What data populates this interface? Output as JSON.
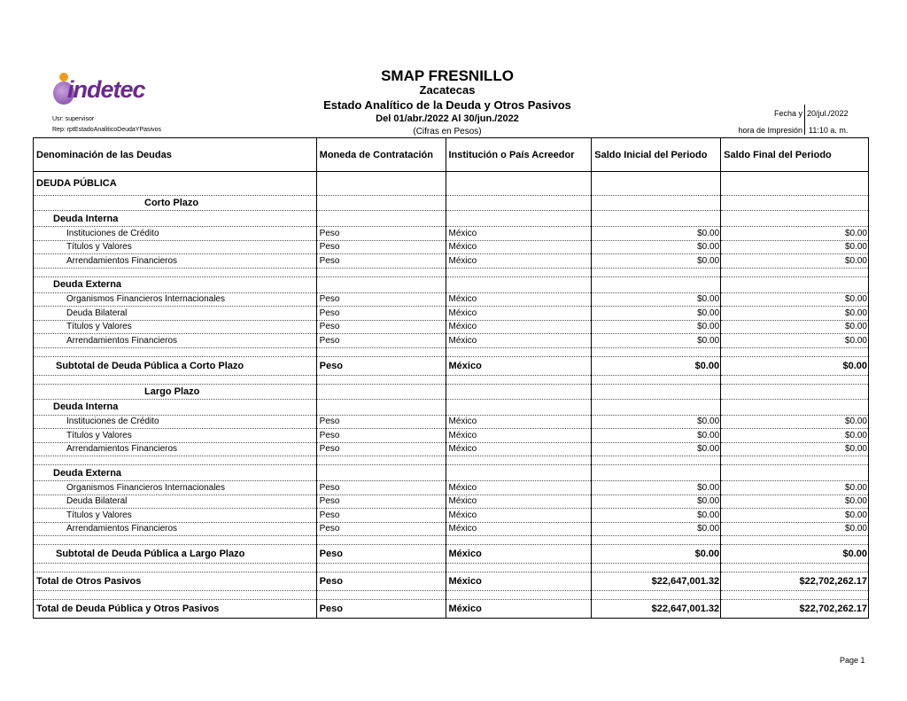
{
  "header": {
    "entity": "SMAP FRESNILLO",
    "state": "Zacatecas",
    "report_title": "Estado Analítico de la Deuda y Otros Pasivos",
    "period": "Del 01/abr./2022 Al 30/jun./2022",
    "units": "(Cifras en Pesos)",
    "user": "Usr: supervisor",
    "report": "Rep: rptEstadoAnaliticoDeudaYPasivos",
    "date_label": "Fecha y",
    "date_value": "20/jul./2022",
    "time_label": "hora de Impresión",
    "time_value": "11:10 a. m.",
    "logo_text": "indetec"
  },
  "columns": [
    "Denominación de las Deudas",
    "Moneda de Contratación",
    "Institución o País Acreedor",
    "Saldo Inicial del Periodo",
    "Saldo Final del Periodo"
  ],
  "rows": [
    {
      "type": "section",
      "cells": [
        "DEUDA PÚBLICA",
        "",
        "",
        "",
        ""
      ]
    },
    {
      "type": "plazo",
      "cells": [
        "Corto Plazo",
        "",
        "",
        "",
        ""
      ]
    },
    {
      "type": "group",
      "cells": [
        "Deuda Interna",
        "",
        "",
        "",
        ""
      ]
    },
    {
      "type": "item",
      "cells": [
        "Instituciones de Crédito",
        "Peso",
        "México",
        "$0.00",
        "$0.00"
      ]
    },
    {
      "type": "item",
      "cells": [
        "Títulos y Valores",
        "Peso",
        "México",
        "$0.00",
        "$0.00"
      ]
    },
    {
      "type": "item",
      "cells": [
        "Arrendamientos Financieros",
        "Peso",
        "México",
        "$0.00",
        "$0.00"
      ]
    },
    {
      "type": "blank",
      "cells": [
        "",
        "",
        "",
        "",
        ""
      ]
    },
    {
      "type": "group",
      "cells": [
        "Deuda Externa",
        "",
        "",
        "",
        ""
      ]
    },
    {
      "type": "item",
      "cells": [
        "Organismos Financieros Internacionales",
        "Peso",
        "México",
        "$0.00",
        "$0.00"
      ]
    },
    {
      "type": "item",
      "cells": [
        "Deuda Bilateral",
        "Peso",
        "México",
        "$0.00",
        "$0.00"
      ]
    },
    {
      "type": "item",
      "cells": [
        "Títulos y Valores",
        "Peso",
        "México",
        "$0.00",
        "$0.00"
      ]
    },
    {
      "type": "item",
      "cells": [
        "Arrendamientos Financieros",
        "Peso",
        "México",
        "$0.00",
        "$0.00"
      ]
    },
    {
      "type": "blank",
      "cells": [
        "",
        "",
        "",
        "",
        ""
      ]
    },
    {
      "type": "subtotal",
      "cells": [
        "Subtotal de Deuda Pública a Corto Plazo",
        "Peso",
        "México",
        "$0.00",
        "$0.00"
      ]
    },
    {
      "type": "blank",
      "cells": [
        "",
        "",
        "",
        "",
        ""
      ]
    },
    {
      "type": "plazo",
      "cells": [
        "Largo Plazo",
        "",
        "",
        "",
        ""
      ]
    },
    {
      "type": "group",
      "cells": [
        "Deuda Interna",
        "",
        "",
        "",
        ""
      ]
    },
    {
      "type": "item",
      "cells": [
        "Instituciones de Crédito",
        "Peso",
        "México",
        "$0.00",
        "$0.00"
      ]
    },
    {
      "type": "item",
      "cells": [
        "Títulos y Valores",
        "Peso",
        "México",
        "$0.00",
        "$0.00"
      ]
    },
    {
      "type": "item",
      "cells": [
        "Arrendamientos Financieros",
        "Peso",
        "México",
        "$0.00",
        "$0.00"
      ]
    },
    {
      "type": "blank",
      "cells": [
        "",
        "",
        "",
        "",
        ""
      ]
    },
    {
      "type": "group",
      "cells": [
        "Deuda Externa",
        "",
        "",
        "",
        ""
      ]
    },
    {
      "type": "item",
      "cells": [
        "Organismos Financieros Internacionales",
        "Peso",
        "México",
        "$0.00",
        "$0.00"
      ]
    },
    {
      "type": "item",
      "cells": [
        "Deuda Bilateral",
        "Peso",
        "México",
        "$0.00",
        "$0.00"
      ]
    },
    {
      "type": "item",
      "cells": [
        "Títulos y Valores",
        "Peso",
        "México",
        "$0.00",
        "$0.00"
      ]
    },
    {
      "type": "item",
      "cells": [
        "Arrendamientos Financieros",
        "Peso",
        "México",
        "$0.00",
        "$0.00"
      ]
    },
    {
      "type": "blank",
      "cells": [
        "",
        "",
        "",
        "",
        ""
      ]
    },
    {
      "type": "subtotal",
      "cells": [
        "Subtotal de Deuda Pública a Largo Plazo",
        "Peso",
        "México",
        "$0.00",
        "$0.00"
      ]
    },
    {
      "type": "blank",
      "cells": [
        "",
        "",
        "",
        "",
        ""
      ]
    },
    {
      "type": "total",
      "cells": [
        "Total de Otros Pasivos",
        "Peso",
        "México",
        "$22,647,001.32",
        "$22,702,262.17"
      ]
    },
    {
      "type": "blank",
      "cells": [
        "",
        "",
        "",
        "",
        ""
      ]
    },
    {
      "type": "total",
      "cells": [
        "Total de Deuda Pública y Otros Pasivos",
        "Peso",
        "México",
        "$22,647,001.32",
        "$22,702,262.17"
      ]
    }
  ],
  "footer": {
    "page": "Page 1"
  }
}
